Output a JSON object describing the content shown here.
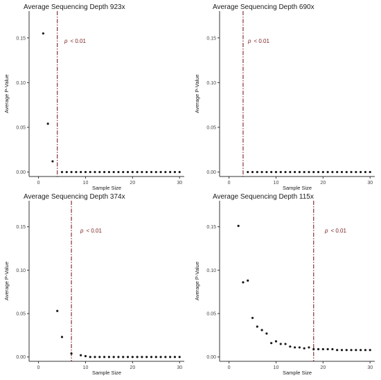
{
  "figure": {
    "panels": [
      {
        "title": "Average Sequencing Depth 923x",
        "annotation": {
          "p": "p",
          "text": "< 0.01"
        }
      },
      {
        "title": "Average Sequencing Depth 690x",
        "annotation": {
          "p": "p",
          "text": "< 0.01"
        }
      },
      {
        "title": "Average Sequencing Depth 374x",
        "annotation": {
          "p": "p",
          "text": "< 0.01"
        }
      },
      {
        "title": "Average Sequencing Depth 115x",
        "annotation": {
          "p": "p",
          "text": "< 0.01"
        }
      }
    ]
  },
  "colors": {
    "points": "#1a1a1a",
    "cutoff_line": "#7a1f1f",
    "axis": "#333333"
  },
  "chart_data": [
    {
      "type": "scatter",
      "title": "Average Sequencing Depth 923x",
      "xlabel": "Sample Size",
      "ylabel": "Average P-Value",
      "xlim": [
        -2,
        31
      ],
      "ylim": [
        -0.005,
        0.18
      ],
      "xticks": [
        0,
        10,
        20,
        30
      ],
      "yticks": [
        0.0,
        0.05,
        0.1,
        0.15
      ],
      "ytick_labels": [
        "0.00",
        "0.05",
        "0.10",
        "0.15"
      ],
      "cutoff_x": 4,
      "x": [
        1,
        2,
        3,
        5,
        6,
        7,
        8,
        9,
        10,
        11,
        12,
        13,
        14,
        15,
        16,
        17,
        18,
        19,
        20,
        21,
        22,
        23,
        24,
        25,
        26,
        27,
        28,
        29,
        30
      ],
      "y": [
        0.155,
        0.054,
        0.012,
        0.0,
        0.0,
        0.0,
        0.0,
        0.0,
        0.0,
        0.0,
        0.0,
        0.0,
        0.0,
        0.0,
        0.0,
        0.0,
        0.0,
        0.0,
        0.0,
        0.0,
        0.0,
        0.0,
        0.0,
        0.0,
        0.0,
        0.0,
        0.0,
        0.0,
        0.0
      ]
    },
    {
      "type": "scatter",
      "title": "Average Sequencing Depth 690x",
      "xlabel": "Sample Size",
      "ylabel": "Average P-Value",
      "xlim": [
        -2,
        31
      ],
      "ylim": [
        -0.005,
        0.18
      ],
      "xticks": [
        0,
        10,
        20,
        30
      ],
      "yticks": [
        0.0,
        0.05,
        0.1,
        0.15
      ],
      "ytick_labels": [
        "0.00",
        "0.05",
        "0.10",
        "0.15"
      ],
      "cutoff_x": 3,
      "x": [
        4,
        5,
        6,
        7,
        8,
        9,
        10,
        11,
        12,
        13,
        14,
        15,
        16,
        17,
        18,
        19,
        20,
        21,
        22,
        23,
        24,
        25,
        26,
        27,
        28,
        29,
        30
      ],
      "y": [
        0.0,
        0.0,
        0.0,
        0.0,
        0.0,
        0.0,
        0.0,
        0.0,
        0.0,
        0.0,
        0.0,
        0.0,
        0.0,
        0.0,
        0.0,
        0.0,
        0.0,
        0.0,
        0.0,
        0.0,
        0.0,
        0.0,
        0.0,
        0.0,
        0.0,
        0.0,
        0.0
      ]
    },
    {
      "type": "scatter",
      "title": "Average Sequencing Depth 374x",
      "xlabel": "Sample Size",
      "ylabel": "Average P-Value",
      "xlim": [
        -2,
        31
      ],
      "ylim": [
        -0.005,
        0.18
      ],
      "xticks": [
        0,
        10,
        20,
        30
      ],
      "yticks": [
        0.0,
        0.05,
        0.1,
        0.15
      ],
      "ytick_labels": [
        "0.00",
        "0.05",
        "0.10",
        "0.15"
      ],
      "cutoff_x": 7,
      "x": [
        4,
        5,
        7,
        9,
        10,
        11,
        12,
        13,
        14,
        15,
        16,
        17,
        18,
        19,
        20,
        21,
        22,
        23,
        24,
        25,
        26,
        27,
        28,
        29,
        30
      ],
      "y": [
        0.053,
        0.023,
        0.004,
        0.002,
        0.001,
        0.0,
        0.0,
        0.0,
        0.0,
        0.0,
        0.0,
        0.0,
        0.0,
        0.0,
        0.0,
        0.0,
        0.0,
        0.0,
        0.0,
        0.0,
        0.0,
        0.0,
        0.0,
        0.0,
        0.0
      ]
    },
    {
      "type": "scatter",
      "title": "Average Sequencing Depth 115x",
      "xlabel": "Sample Size",
      "ylabel": "Average P-Value",
      "xlim": [
        -2,
        31
      ],
      "ylim": [
        -0.005,
        0.18
      ],
      "xticks": [
        0,
        10,
        20,
        30
      ],
      "yticks": [
        0.0,
        0.05,
        0.1,
        0.15
      ],
      "ytick_labels": [
        "0.00",
        "0.05",
        "0.10",
        "0.15"
      ],
      "cutoff_x": 18,
      "x": [
        2,
        3,
        4,
        5,
        6,
        7,
        8,
        9,
        10,
        11,
        12,
        13,
        14,
        15,
        16,
        17,
        18,
        19,
        20,
        21,
        22,
        23,
        24,
        25,
        26,
        27,
        28,
        29,
        30
      ],
      "y": [
        0.151,
        0.086,
        0.088,
        0.045,
        0.035,
        0.031,
        0.027,
        0.016,
        0.018,
        0.015,
        0.015,
        0.012,
        0.011,
        0.011,
        0.01,
        0.011,
        0.009,
        0.009,
        0.009,
        0.009,
        0.009,
        0.008,
        0.008,
        0.008,
        0.008,
        0.008,
        0.008,
        0.008,
        0.008
      ]
    }
  ]
}
